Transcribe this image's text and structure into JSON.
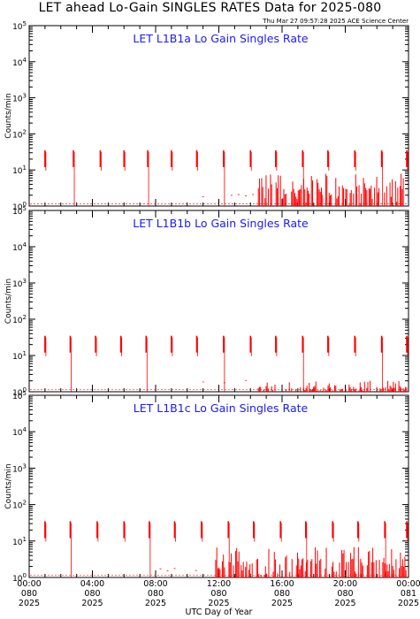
{
  "header": {
    "title": "LET ahead Lo-Gain SINGLES RATES Data for 2025-080",
    "generated": "Thu Mar 27 09:57:28 2025 ACE Science Center"
  },
  "chart_data": [
    {
      "type": "line",
      "title": "LET L1B1a Lo Gain Singles Rate",
      "ylabel": "Counts/min",
      "yscale": "log",
      "ylim": [
        1,
        100000
      ],
      "xlim": [
        0,
        24
      ],
      "color": "#ff0000",
      "spike_hours": [
        1.0,
        2.8,
        4.5,
        6.0,
        7.5,
        9.0,
        10.6,
        12.3,
        14.0,
        15.6,
        17.3,
        18.9,
        20.6,
        22.3,
        23.9
      ],
      "spike_peak": 35,
      "spike_base": 12,
      "noise_start_hour": 14.5,
      "noise_max": 8
    },
    {
      "type": "line",
      "title": "LET L1B1b Lo Gain Singles Rate",
      "ylabel": "Counts/min",
      "yscale": "log",
      "ylim": [
        1,
        100000
      ],
      "xlim": [
        0,
        24
      ],
      "color": "#ff0000",
      "spike_hours": [
        1.0,
        2.6,
        4.2,
        5.8,
        7.4,
        9.0,
        10.6,
        12.3,
        14.0,
        15.6,
        17.3,
        18.9,
        20.6,
        22.3,
        23.9
      ],
      "spike_peak": 35,
      "spike_base": 12,
      "noise_start_hour": 14.5,
      "noise_max": 2
    },
    {
      "type": "line",
      "title": "LET L1B1c Lo Gain Singles Rate",
      "ylabel": "Counts/min",
      "yscale": "log",
      "ylim": [
        1,
        100000
      ],
      "xlim": [
        0,
        24
      ],
      "color": "#ff0000",
      "spike_hours": [
        1.0,
        2.6,
        4.3,
        6.0,
        7.6,
        9.2,
        10.9,
        12.6,
        14.2,
        15.9,
        17.5,
        19.2,
        20.8,
        22.5,
        24.0
      ],
      "spike_peak": 35,
      "spike_base": 12,
      "noise_start_hour": 11.8,
      "noise_max": 7
    }
  ],
  "x_axis": {
    "title": "UTC Day of Year",
    "ticks": [
      {
        "hour": 0,
        "time": "00:00",
        "day": "080",
        "year": "2025"
      },
      {
        "hour": 4,
        "time": "04:00",
        "day": "080",
        "year": "2025"
      },
      {
        "hour": 8,
        "time": "08:00",
        "day": "080",
        "year": "2025"
      },
      {
        "hour": 12,
        "time": "12:00",
        "day": "080",
        "year": "2025"
      },
      {
        "hour": 16,
        "time": "16:00",
        "day": "080",
        "year": "2025"
      },
      {
        "hour": 20,
        "time": "20:00",
        "day": "080",
        "year": "2025"
      },
      {
        "hour": 24,
        "time": "00:00",
        "day": "081",
        "year": "2025"
      }
    ]
  },
  "y_axis": {
    "tick_base": "10",
    "tick_exponents": [
      "0",
      "1",
      "2",
      "3",
      "4",
      "5"
    ]
  }
}
